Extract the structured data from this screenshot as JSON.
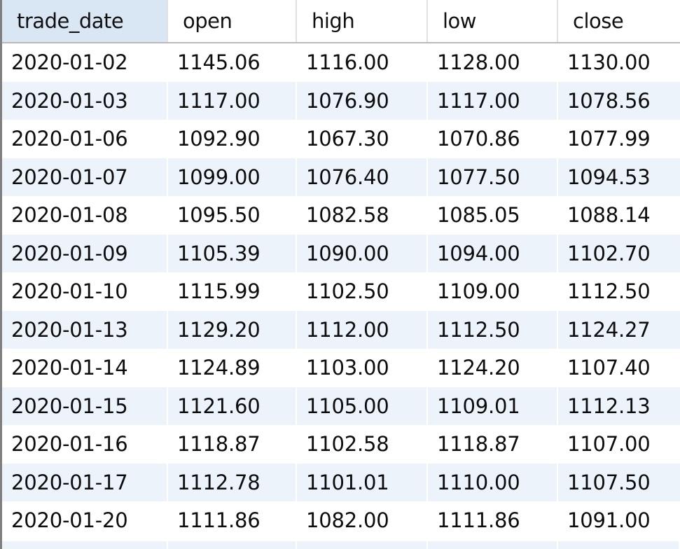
{
  "table": {
    "columns": [
      "trade_date",
      "open",
      "high",
      "low",
      "close"
    ],
    "active_column": "trade_date",
    "rows": [
      [
        "2020-01-02",
        "1145.06",
        "1116.00",
        "1128.00",
        "1130.00"
      ],
      [
        "2020-01-03",
        "1117.00",
        "1076.90",
        "1117.00",
        "1078.56"
      ],
      [
        "2020-01-06",
        "1092.90",
        "1067.30",
        "1070.86",
        "1077.99"
      ],
      [
        "2020-01-07",
        "1099.00",
        "1076.40",
        "1077.50",
        "1094.53"
      ],
      [
        "2020-01-08",
        "1095.50",
        "1082.58",
        "1085.05",
        "1088.14"
      ],
      [
        "2020-01-09",
        "1105.39",
        "1090.00",
        "1094.00",
        "1102.70"
      ],
      [
        "2020-01-10",
        "1115.99",
        "1102.50",
        "1109.00",
        "1112.50"
      ],
      [
        "2020-01-13",
        "1129.20",
        "1112.00",
        "1112.50",
        "1124.27"
      ],
      [
        "2020-01-14",
        "1124.89",
        "1103.00",
        "1124.20",
        "1107.40"
      ],
      [
        "2020-01-15",
        "1121.60",
        "1105.00",
        "1109.01",
        "1112.13"
      ],
      [
        "2020-01-16",
        "1118.87",
        "1102.58",
        "1118.87",
        "1107.00"
      ],
      [
        "2020-01-17",
        "1112.78",
        "1101.01",
        "1110.00",
        "1107.50"
      ],
      [
        "2020-01-20",
        "1111.86",
        "1082.00",
        "1111.86",
        "1091.00"
      ]
    ]
  },
  "colors": {
    "header_active_bg": "#d9e7f5",
    "alt_row_bg": "#edf3fb",
    "grid_left_border": "#7f7f7f"
  }
}
